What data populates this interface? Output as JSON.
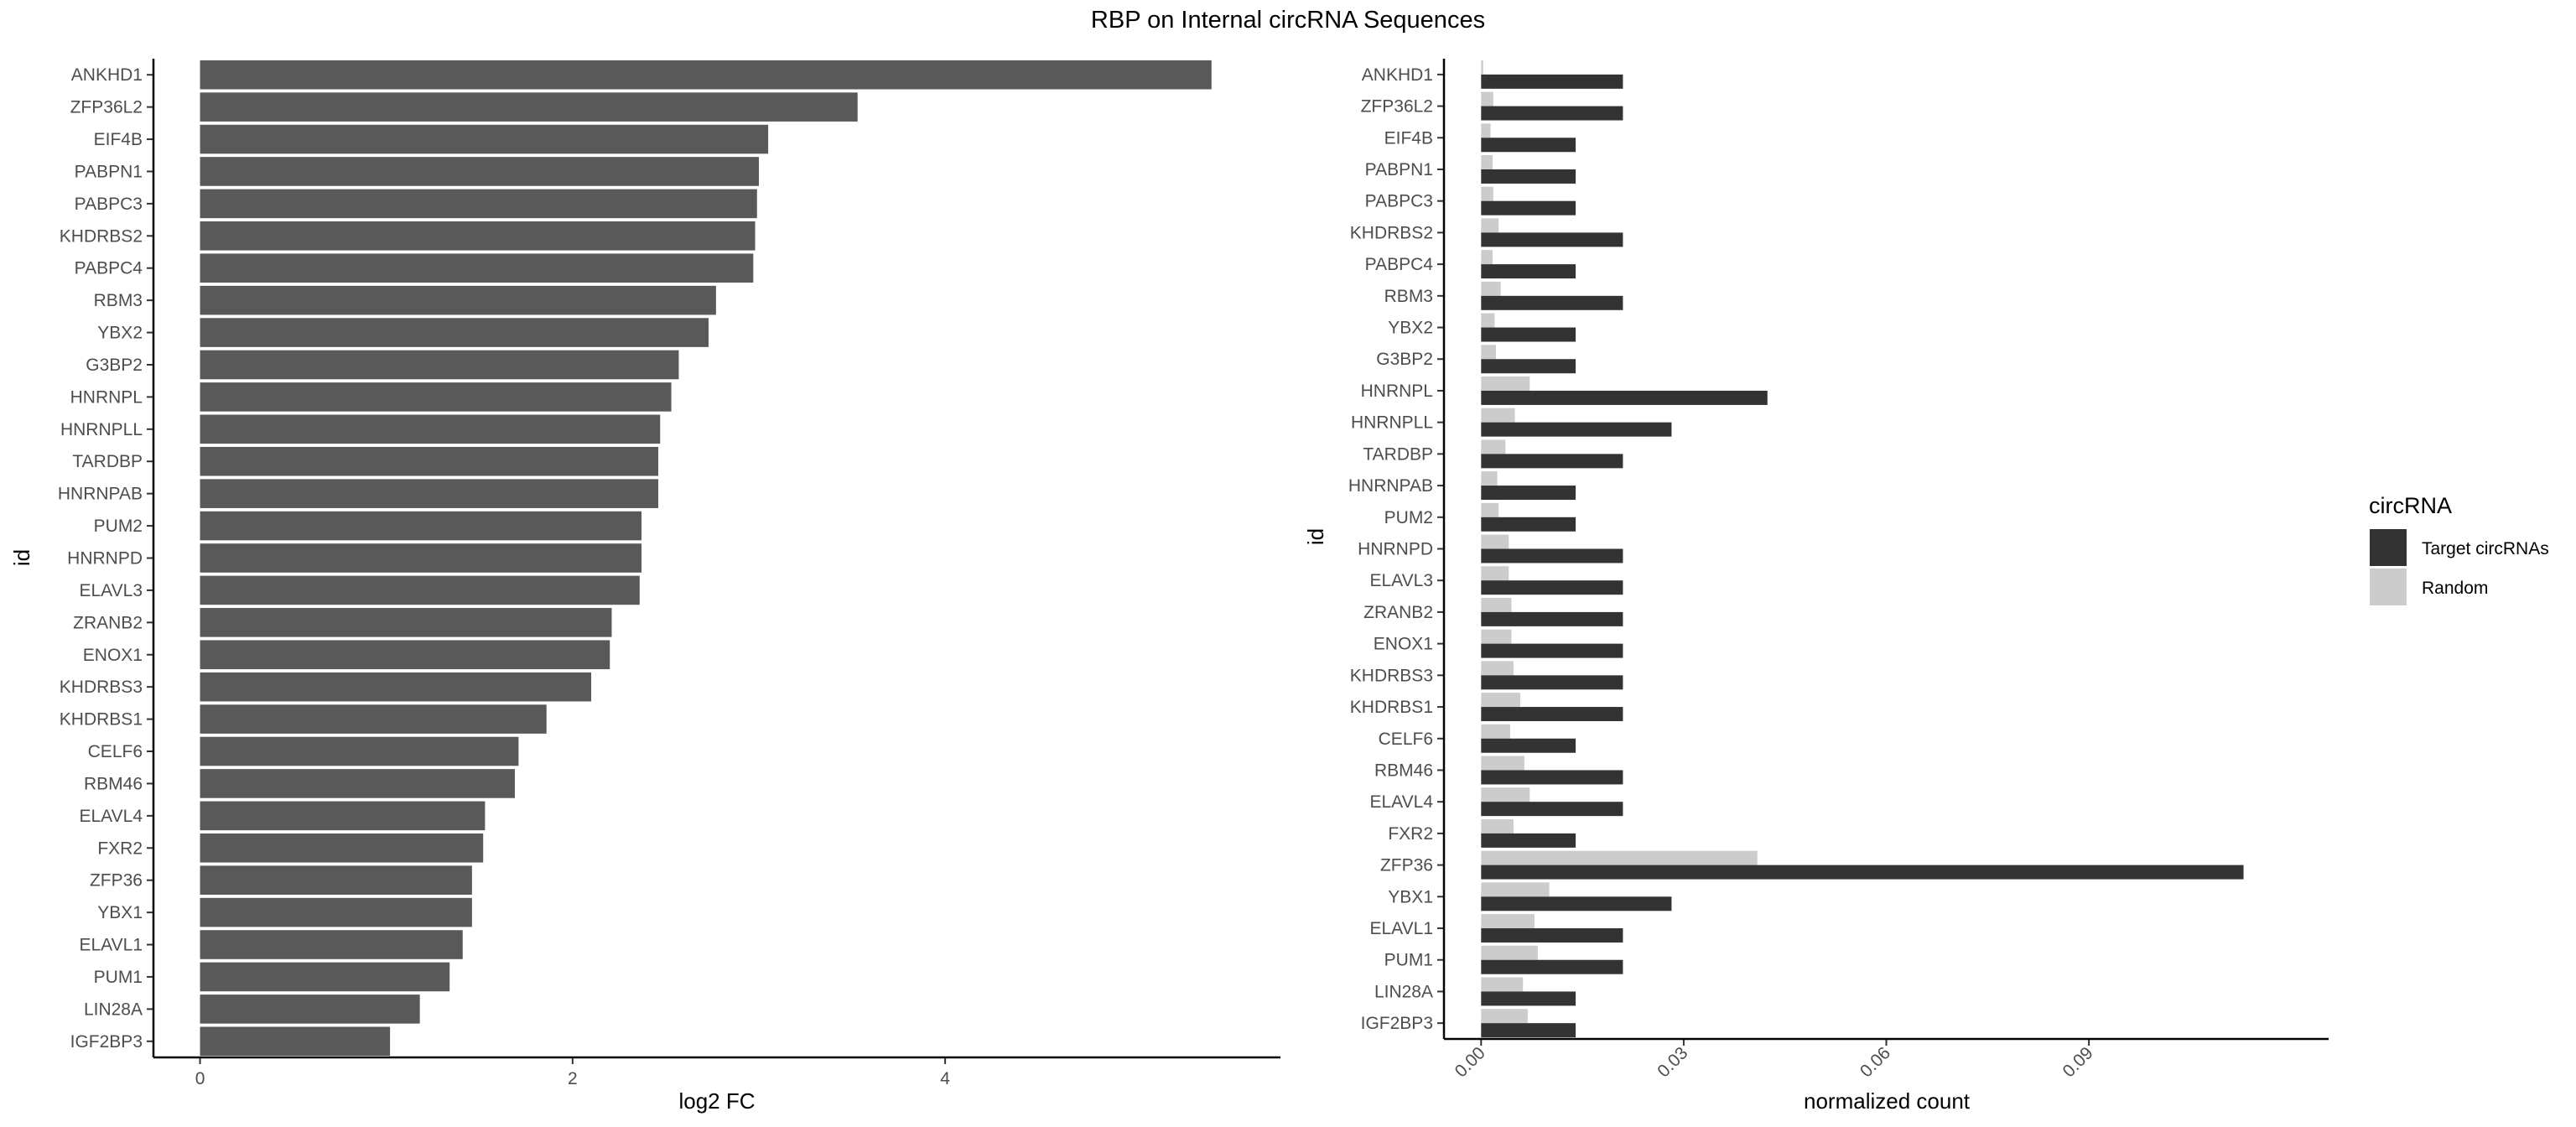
{
  "title": "RBP on Internal circRNA Sequences",
  "chart_data": [
    {
      "type": "bar",
      "orientation": "horizontal",
      "xlabel": "log2 FC",
      "ylabel": "id",
      "xlim": [
        -0.25,
        5.8
      ],
      "xticks": [
        0,
        2,
        4
      ],
      "grid": false,
      "bar_color": "#595959",
      "categories": [
        "ANKHD1",
        "ZFP36L2",
        "EIF4B",
        "PABPN1",
        "PABPC3",
        "KHDRBS2",
        "PABPC4",
        "RBM3",
        "YBX2",
        "G3BP2",
        "HNRNPL",
        "HNRNPLL",
        "TARDBP",
        "HNRNPAB",
        "PUM2",
        "HNRNPD",
        "ELAVL3",
        "ZRANB2",
        "ENOX1",
        "KHDRBS3",
        "KHDRBS1",
        "CELF6",
        "RBM46",
        "ELAVL4",
        "FXR2",
        "ZFP36",
        "YBX1",
        "ELAVL1",
        "PUM1",
        "LIN28A",
        "IGF2BP3"
      ],
      "values": [
        5.43,
        3.53,
        3.05,
        3.0,
        2.99,
        2.98,
        2.97,
        2.77,
        2.73,
        2.57,
        2.53,
        2.47,
        2.46,
        2.46,
        2.37,
        2.37,
        2.36,
        2.21,
        2.2,
        2.1,
        1.86,
        1.71,
        1.69,
        1.53,
        1.52,
        1.46,
        1.46,
        1.41,
        1.34,
        1.18,
        1.02
      ]
    },
    {
      "type": "bar",
      "orientation": "horizontal",
      "xlabel": "normalized count",
      "ylabel": "id",
      "xlim": [
        -0.0055,
        0.1255
      ],
      "xticks": [
        0.0,
        0.03,
        0.06,
        0.09
      ],
      "xtick_labels": [
        "0.00",
        "0.03",
        "0.06",
        "0.09"
      ],
      "grid": false,
      "legend": {
        "title": "circRNA",
        "position": "right"
      },
      "categories": [
        "ANKHD1",
        "ZFP36L2",
        "EIF4B",
        "PABPN1",
        "PABPC3",
        "KHDRBS2",
        "PABPC4",
        "RBM3",
        "YBX2",
        "G3BP2",
        "HNRNPL",
        "HNRNPLL",
        "TARDBP",
        "HNRNPAB",
        "PUM2",
        "HNRNPD",
        "ELAVL3",
        "ZRANB2",
        "ENOX1",
        "KHDRBS3",
        "KHDRBS1",
        "CELF6",
        "RBM46",
        "ELAVL4",
        "FXR2",
        "ZFP36",
        "YBX1",
        "ELAVL1",
        "PUM1",
        "LIN28A",
        "IGF2BP3"
      ],
      "series": [
        {
          "name": "Target circRNAs",
          "color": "#333333",
          "values": [
            0.021,
            0.021,
            0.014,
            0.014,
            0.014,
            0.021,
            0.014,
            0.021,
            0.014,
            0.014,
            0.0424,
            0.0282,
            0.021,
            0.014,
            0.014,
            0.021,
            0.021,
            0.021,
            0.021,
            0.021,
            0.021,
            0.014,
            0.021,
            0.021,
            0.014,
            0.1129,
            0.0282,
            0.021,
            0.021,
            0.014,
            0.014
          ]
        },
        {
          "name": "Random",
          "color": "#cccccc",
          "values": [
            0.0003,
            0.0018,
            0.0014,
            0.0017,
            0.0018,
            0.0026,
            0.0017,
            0.0029,
            0.002,
            0.0022,
            0.0072,
            0.005,
            0.0036,
            0.0024,
            0.0026,
            0.0041,
            0.0041,
            0.0045,
            0.0045,
            0.0048,
            0.0058,
            0.0043,
            0.0064,
            0.0072,
            0.0048,
            0.0409,
            0.0101,
            0.0079,
            0.0084,
            0.0062,
            0.0069
          ]
        }
      ]
    }
  ]
}
